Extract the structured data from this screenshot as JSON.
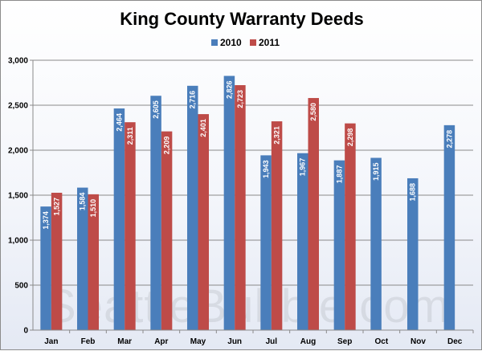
{
  "watermark": "SeattleBubble.com",
  "chart_data": {
    "type": "bar",
    "title": "King County Warranty Deeds",
    "xlabel": "",
    "ylabel": "",
    "categories": [
      "Jan",
      "Feb",
      "Mar",
      "Apr",
      "May",
      "Jun",
      "Jul",
      "Aug",
      "Sep",
      "Oct",
      "Nov",
      "Dec"
    ],
    "series": [
      {
        "name": "2010",
        "color": "#4a7ebb",
        "values": [
          1374,
          1584,
          2464,
          2605,
          2716,
          2826,
          1943,
          1967,
          1887,
          1915,
          1688,
          2278
        ],
        "labels": [
          "1,374",
          "1,584",
          "2,464",
          "2,605",
          "2,716",
          "2,826",
          "1,943",
          "1,967",
          "1,887",
          "1,915",
          "1,688",
          "2,278"
        ]
      },
      {
        "name": "2011",
        "color": "#be4b48",
        "values": [
          1527,
          1510,
          2311,
          2209,
          2401,
          2723,
          2321,
          2580,
          2298,
          null,
          null,
          null
        ],
        "labels": [
          "1,527",
          "1,510",
          "2,311",
          "2,209",
          "2,401",
          "2,723",
          "2,321",
          "2,580",
          "2,298",
          null,
          null,
          null
        ]
      }
    ],
    "ylim": [
      0,
      3000
    ],
    "yticks": [
      0,
      500,
      1000,
      1500,
      2000,
      2500,
      3000
    ],
    "ytick_labels": [
      "0",
      "500",
      "1,000",
      "1,500",
      "2,000",
      "2,500",
      "3,000"
    ],
    "grid": true,
    "legend": "top-center"
  }
}
